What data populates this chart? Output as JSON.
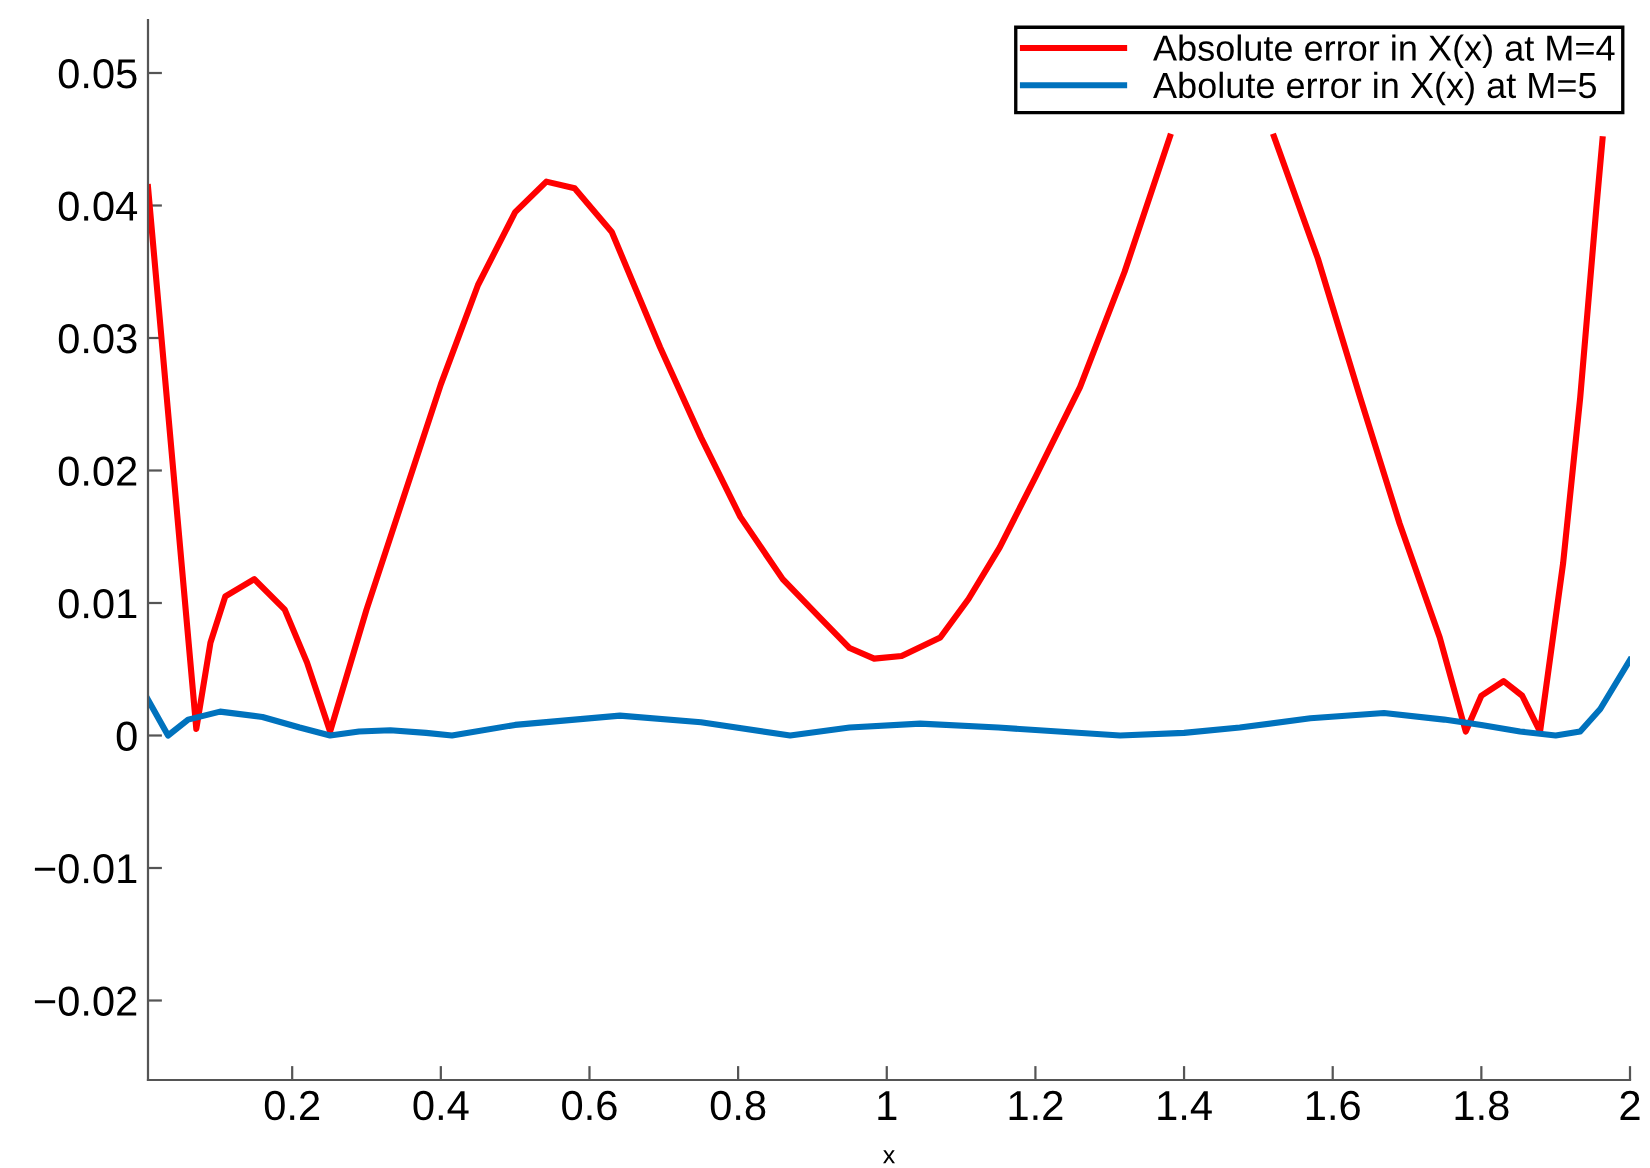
{
  "chart_data": {
    "type": "line",
    "xlabel": "x",
    "xlim": [
      0.006,
      2
    ],
    "ylim": [
      -0.026,
      0.054
    ],
    "xticks": [
      0.2,
      0.4,
      0.6,
      0.8,
      1,
      1.2,
      1.4,
      1.6,
      1.8,
      2
    ],
    "yticks": [
      {
        "value": -0.02,
        "label": "−0.02"
      },
      {
        "value": -0.01,
        "label": "−0.01"
      },
      0,
      0.01,
      0.02,
      0.03,
      0.04,
      0.05
    ],
    "grid": false,
    "legend": "top right",
    "line_style": "solid",
    "series": [
      {
        "name": "Absolute error in X(x) at M=4",
        "color": "#ff0000",
        "x": [
          0.006,
          0.04,
          0.071,
          0.09,
          0.11,
          0.149,
          0.19,
          0.22,
          0.251,
          0.3,
          0.35,
          0.4,
          0.45,
          0.5,
          0.542,
          0.58,
          0.63,
          0.695,
          0.75,
          0.803,
          0.86,
          0.91,
          0.95,
          0.983,
          1.02,
          1.072,
          1.11,
          1.152,
          1.2,
          1.26,
          1.32,
          1.381,
          1.45,
          1.521,
          1.58,
          1.637,
          1.69,
          1.744,
          1.779,
          1.8,
          1.83,
          1.855,
          1.879,
          1.91,
          1.933,
          1.955,
          1.963
        ],
        "values": [
          0.0414,
          0.02,
          0.0005,
          0.007,
          0.0105,
          0.0118,
          0.0095,
          0.0055,
          0.0003,
          0.0095,
          0.018,
          0.0265,
          0.034,
          0.0395,
          0.0418,
          0.0413,
          0.038,
          0.0293,
          0.0225,
          0.0165,
          0.0118,
          0.0089,
          0.0066,
          0.0058,
          0.006,
          0.0074,
          0.0103,
          0.0142,
          0.0195,
          0.0263,
          0.035,
          0.0452,
          null,
          0.0452,
          0.036,
          0.0255,
          0.016,
          0.0074,
          0.0003,
          0.003,
          0.0041,
          0.003,
          0.0003,
          0.013,
          0.0255,
          0.04,
          0.045
        ]
      },
      {
        "name": "Abolute error in X(x) at M=5",
        "color": "#0072bd",
        "x": [
          0.006,
          0.033,
          0.06,
          0.103,
          0.16,
          0.21,
          0.251,
          0.29,
          0.332,
          0.38,
          0.415,
          0.5,
          0.641,
          0.75,
          0.87,
          0.95,
          1.045,
          1.15,
          1.314,
          1.4,
          1.475,
          1.57,
          1.669,
          1.75,
          1.8,
          1.852,
          1.9,
          1.933,
          1.96,
          2.0
        ],
        "values": [
          0.0027,
          0,
          0.0012,
          0.0018,
          0.0014,
          0.0006,
          0,
          0.0003,
          0.0004,
          0.0002,
          0,
          0.0008,
          0.0015,
          0.001,
          0,
          0.0006,
          0.0009,
          0.0006,
          0,
          0.0002,
          0.0006,
          0.0013,
          0.0017,
          0.0012,
          0.0008,
          0.0003,
          0,
          0.0003,
          0.002,
          0.0057
        ]
      }
    ]
  }
}
